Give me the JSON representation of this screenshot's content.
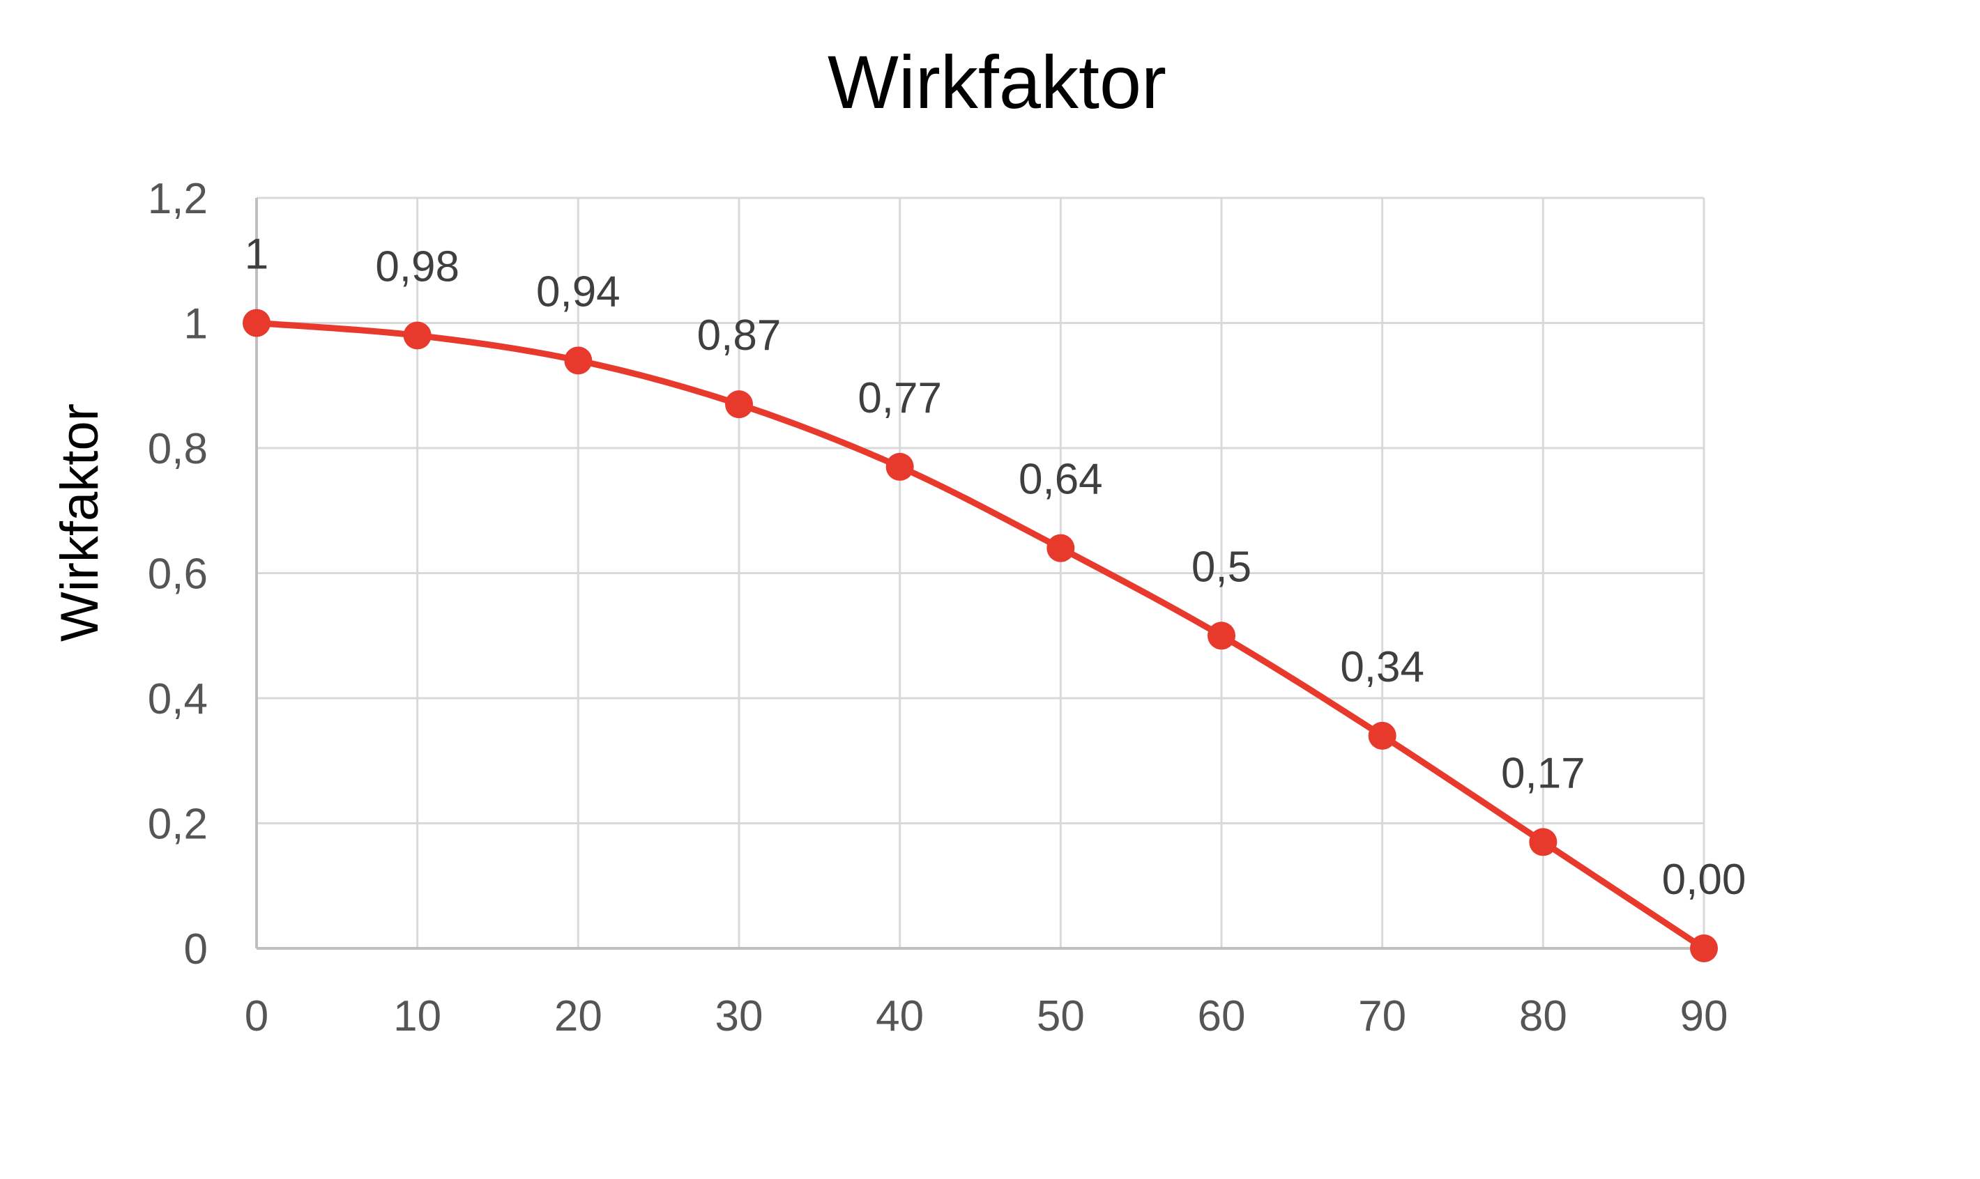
{
  "chart_data": {
    "type": "line",
    "title": "Wirkfaktor",
    "xlabel": "",
    "ylabel": "Wirkfaktor",
    "x": [
      0,
      10,
      20,
      30,
      40,
      50,
      60,
      70,
      80,
      90
    ],
    "x_tick_labels": [
      "0",
      "10",
      "20",
      "30",
      "40",
      "50",
      "60",
      "70",
      "80",
      "90"
    ],
    "xlim": [
      0,
      90
    ],
    "ylim": [
      0,
      1.2
    ],
    "y_ticks": [
      0,
      0.2,
      0.4,
      0.6,
      0.8,
      1,
      1.2
    ],
    "y_tick_labels": [
      "0",
      "0,2",
      "0,4",
      "0,6",
      "0,8",
      "1",
      "1,2"
    ],
    "series": [
      {
        "values": [
          1,
          0.98,
          0.94,
          0.87,
          0.77,
          0.64,
          0.5,
          0.34,
          0.17,
          0.0
        ],
        "labels": [
          "1",
          "0,98",
          "0,94",
          "0,87",
          "0,77",
          "0,64",
          "0,5",
          "0,34",
          "0,17",
          "0,00"
        ],
        "color": "#e8392d",
        "marker": "circle",
        "smooth": true
      }
    ],
    "grid": true,
    "grid_color": "#d9d9d9",
    "axis_color": "#bfbfbf",
    "legend": "none"
  }
}
